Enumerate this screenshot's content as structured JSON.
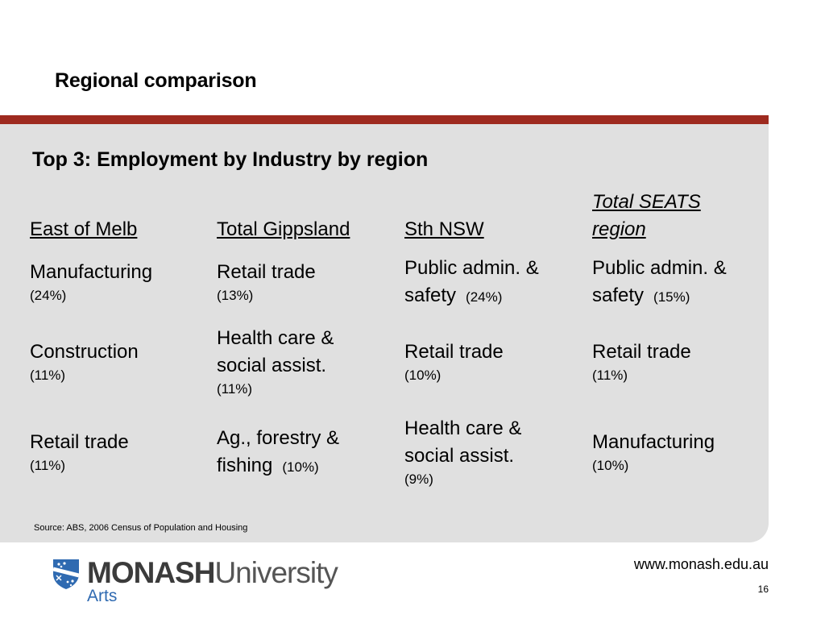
{
  "slide": {
    "title": "Regional comparison",
    "panel_heading": "Top 3: Employment by Industry by region",
    "source": "Source: ABS, 2006 Census of Population and Housing",
    "url": "www.monash.edu.au",
    "page_number": "16"
  },
  "colors": {
    "bar": "#9e2a1f",
    "panel": "#e0e0e0",
    "arts": "#2f6ab1"
  },
  "table": {
    "headers": [
      "East of Melb",
      "Total Gippsland",
      "Sth NSW",
      "Total SEATS region"
    ],
    "rows": [
      [
        {
          "name": "Manufacturing",
          "pct": "(24%)"
        },
        {
          "name": "Retail trade",
          "pct": "(13%)"
        },
        {
          "name": "Public admin. & safety",
          "pct": "(24%)"
        },
        {
          "name": "Public admin. & safety",
          "pct": "(15%)"
        }
      ],
      [
        {
          "name": "Construction",
          "pct": "(11%)"
        },
        {
          "name": "Health care & social assist.",
          "pct": "(11%)"
        },
        {
          "name": "Retail trade",
          "pct": "(10%)"
        },
        {
          "name": "Retail trade",
          "pct": "(11%)"
        }
      ],
      [
        {
          "name": "Retail trade",
          "pct": "(11%)"
        },
        {
          "name": "Ag., forestry & fishing",
          "pct": "(10%)"
        },
        {
          "name": "Health care & social assist.",
          "pct": "(9%)"
        },
        {
          "name": "Manufacturing",
          "pct": "(10%)"
        }
      ]
    ]
  },
  "logo": {
    "wordmark_bold": "MONASH",
    "wordmark_light": "University",
    "faculty": "Arts",
    "icon": "monash-crest-icon"
  }
}
